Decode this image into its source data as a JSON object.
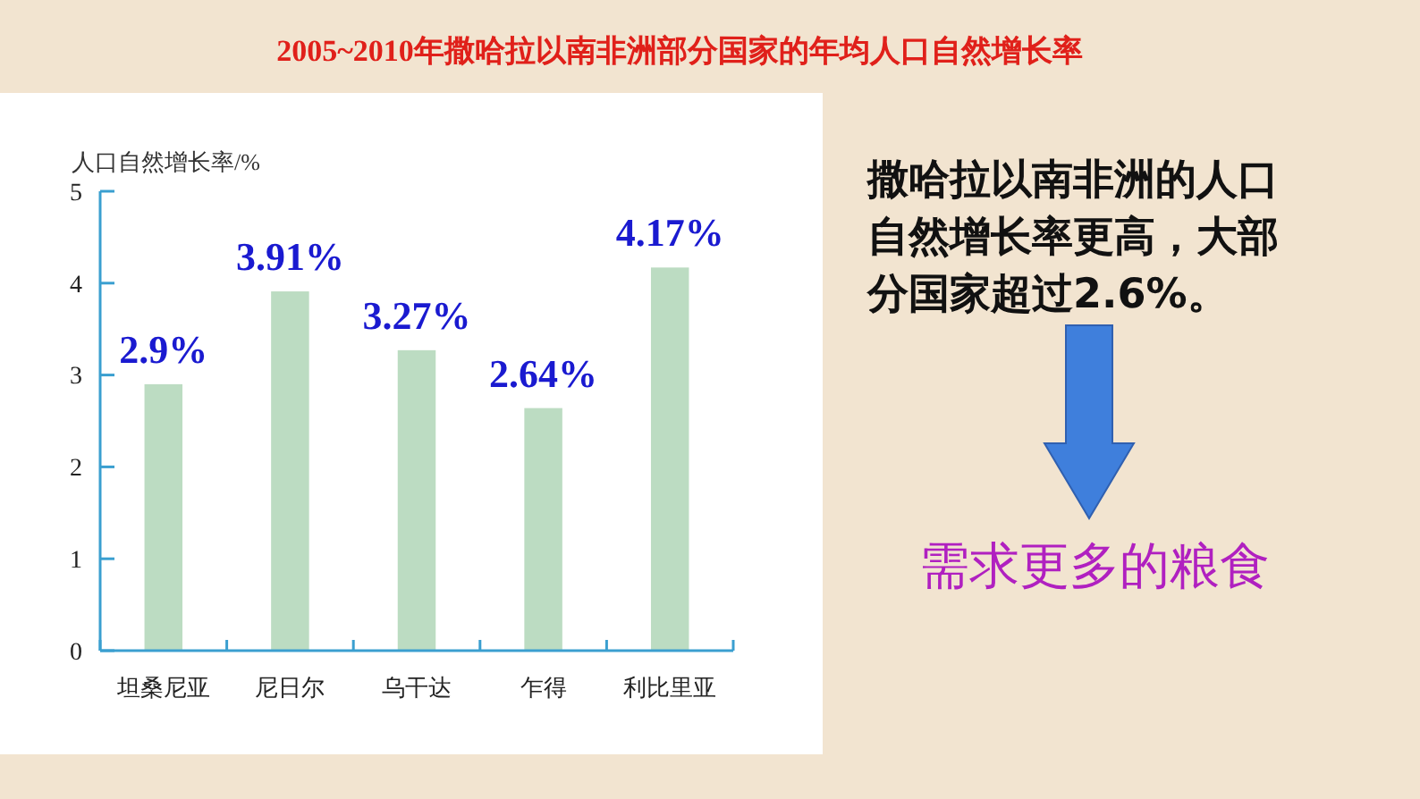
{
  "chart_data": {
    "type": "bar",
    "title": "2005~2010年撒哈拉以南非洲部分国家的年均人口自然增长率",
    "ylabel": "人口自然增长率/%",
    "categories": [
      "坦桑尼亚",
      "尼日尔",
      "乌干达",
      "乍得",
      "利比里亚"
    ],
    "values": [
      2.9,
      3.91,
      3.27,
      2.64,
      4.17
    ],
    "value_labels": [
      "2.9%",
      "3.91%",
      "3.27%",
      "2.64%",
      "4.17%"
    ],
    "color": "#bcdcc2",
    "ylim": [
      0,
      5
    ],
    "yticks": [
      0,
      1,
      2,
      3,
      4,
      5
    ],
    "grid": false,
    "annotations": [
      "撒哈拉以南非洲的人口自然增长率更高，大部分国家超过2.6%。",
      "需求更多的粮食"
    ]
  }
}
